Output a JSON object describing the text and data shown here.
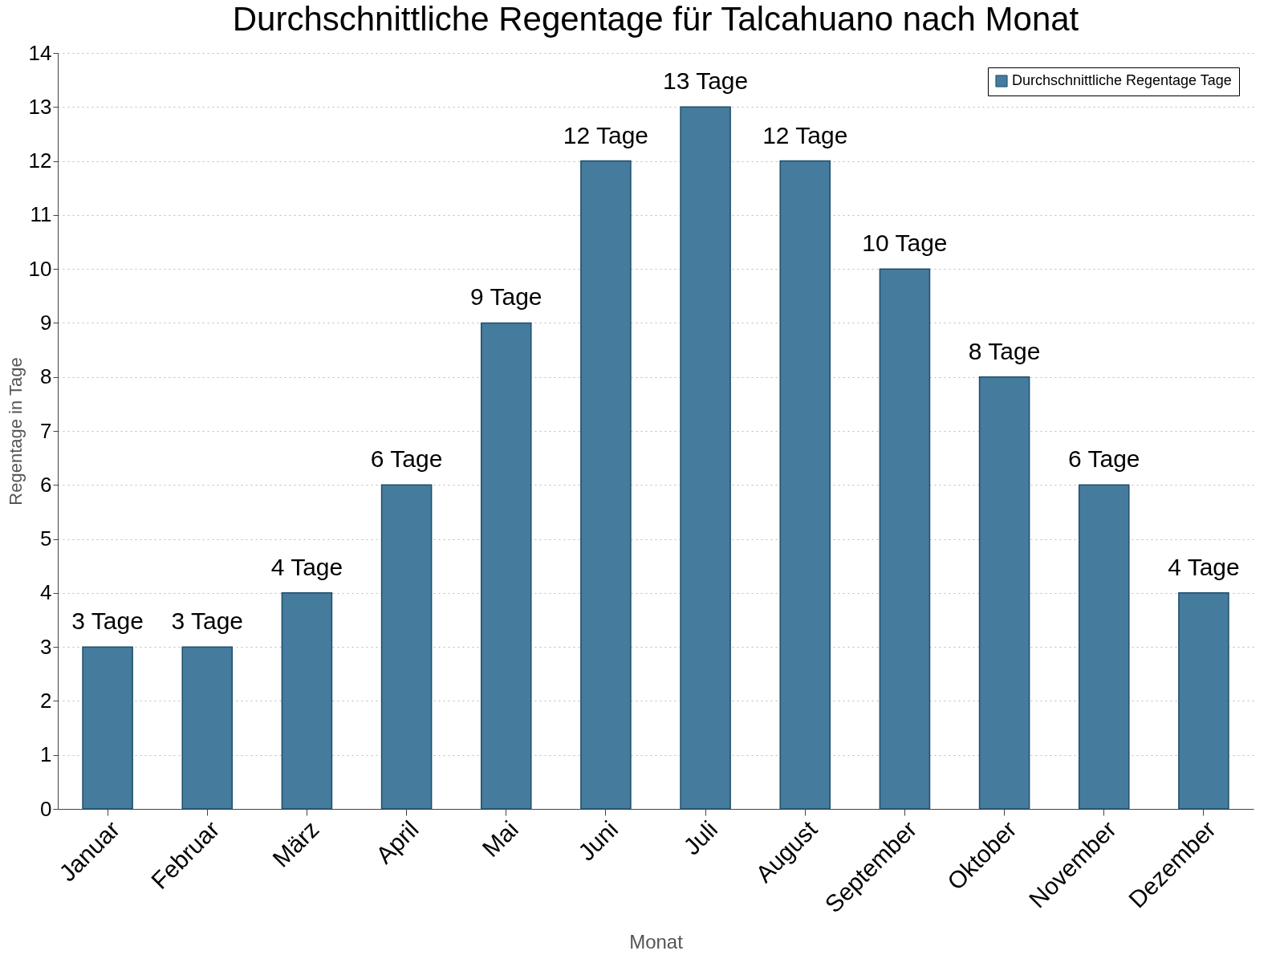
{
  "chart_data": {
    "type": "bar",
    "title": "Durchschnittliche Regentage für Talcahuano nach Monat",
    "xlabel": "Monat",
    "ylabel": "Regentage in Tage",
    "categories": [
      "Januar",
      "Februar",
      "März",
      "April",
      "Mai",
      "Juni",
      "Juli",
      "August",
      "September",
      "Oktober",
      "November",
      "Dezember"
    ],
    "series": [
      {
        "name": "Durchschnittliche Regentage Tage",
        "color": "#457b9d",
        "values": [
          3,
          3,
          4,
          6,
          9,
          12,
          13,
          12,
          10,
          8,
          6,
          4
        ],
        "value_labels": [
          "3 Tage",
          "3 Tage",
          "4 Tage",
          "6 Tage",
          "9 Tage",
          "12 Tage",
          "13 Tage",
          "12 Tage",
          "10 Tage",
          "8 Tage",
          "6 Tage",
          "4 Tage"
        ]
      }
    ],
    "ylim": [
      0,
      14
    ],
    "yticks": [
      0,
      1,
      2,
      3,
      4,
      5,
      6,
      7,
      8,
      9,
      10,
      11,
      12,
      13,
      14
    ],
    "grid": "y",
    "legend": "top right"
  }
}
